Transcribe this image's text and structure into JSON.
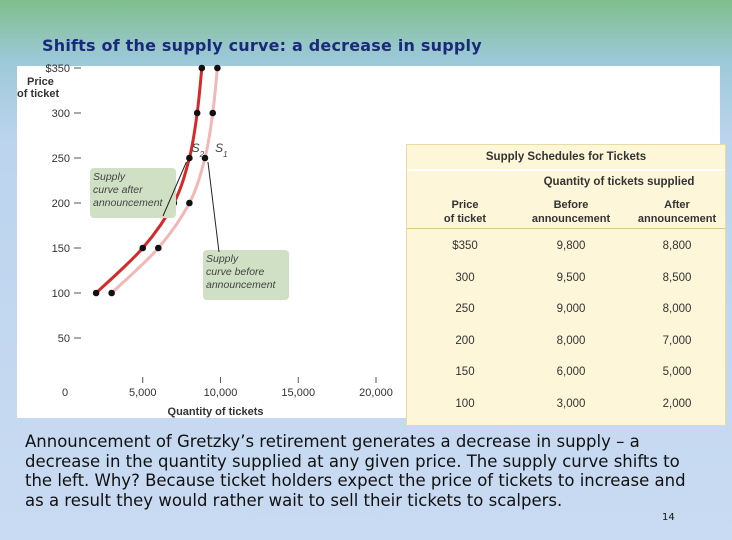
{
  "slide": {
    "title": "Shifts of the supply curve:  a decrease in supply",
    "caption": "Announcement of Gretzky’s retirement generates a decrease in supply – a decrease in the quantity supplied at any given price.  The supply curve shifts to the left.  Why? Because ticket holders expect the price of tickets to increase and as a result they would rather wait to sell their tickets to scalpers.",
    "page_number": "14"
  },
  "colors": {
    "curve_s1": "#f2b8b8",
    "curve_s2": "#d42a2a",
    "point": "#111111",
    "annotation_box": "#cfe0c4",
    "table_background": "#fdf6d8"
  },
  "chart_data": {
    "type": "line",
    "title": "",
    "xlabel": "Quantity of tickets",
    "ylabel_lines": [
      "Price",
      "of ticket"
    ],
    "xlim": [
      0,
      20000
    ],
    "ylim": [
      0,
      350
    ],
    "x_ticks": [
      0,
      5000,
      10000,
      15000,
      20000
    ],
    "x_tick_labels": [
      "0",
      "5,000",
      "10,000",
      "15,000",
      "20,000"
    ],
    "y_ticks": [
      50,
      100,
      150,
      200,
      250,
      300,
      350
    ],
    "y_tick_labels": [
      "50",
      "100",
      "150",
      "200",
      "250",
      "300",
      "$350"
    ],
    "grid": false,
    "series": [
      {
        "name": "S1",
        "points": [
          [
            3000,
            100
          ],
          [
            6000,
            150
          ],
          [
            8000,
            200
          ],
          [
            9000,
            250
          ],
          [
            9500,
            300
          ],
          [
            9800,
            350
          ]
        ]
      },
      {
        "name": "S2",
        "points": [
          [
            2000,
            100
          ],
          [
            5000,
            150
          ],
          [
            7000,
            200
          ],
          [
            8000,
            250
          ],
          [
            8500,
            300
          ],
          [
            8800,
            350
          ]
        ]
      }
    ],
    "curve_labels": {
      "S2": {
        "letter": "S",
        "subscript": "2"
      },
      "S1": {
        "letter": "S",
        "subscript": "1"
      }
    },
    "annotations": [
      {
        "target": "S2",
        "lines": [
          "Supply",
          "curve after",
          "announcement"
        ]
      },
      {
        "target": "S1",
        "lines": [
          "Supply",
          "curve before",
          "announcement"
        ]
      }
    ]
  },
  "table": {
    "title": "Supply Schedules for Tickets",
    "group_header": "Quantity of tickets supplied",
    "columns": [
      [
        "Price",
        "of ticket"
      ],
      [
        "Before",
        "announcement"
      ],
      [
        "After",
        "announcement"
      ]
    ],
    "rows": [
      [
        "$350",
        "9,800",
        "8,800"
      ],
      [
        "300",
        "9,500",
        "8,500"
      ],
      [
        "250",
        "9,000",
        "8,000"
      ],
      [
        "200",
        "8,000",
        "7,000"
      ],
      [
        "150",
        "6,000",
        "5,000"
      ],
      [
        "100",
        "3,000",
        "2,000"
      ]
    ]
  }
}
